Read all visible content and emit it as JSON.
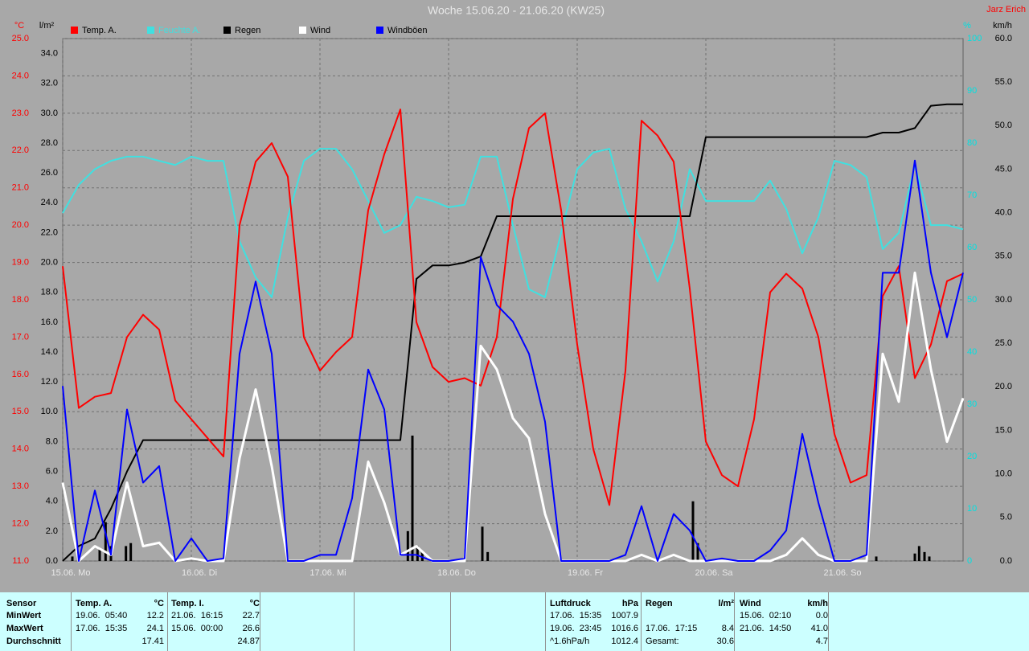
{
  "header": {
    "author": "Jarz Erich"
  },
  "chart_data": {
    "type": "line",
    "title": "Woche 15.06.20 - 21.06.20 (KW25)",
    "grid": true,
    "x": [
      0,
      3,
      6,
      9,
      12,
      15,
      18,
      21,
      24,
      27,
      30,
      33,
      36,
      39,
      42,
      45,
      48,
      51,
      54,
      57,
      60,
      63,
      66,
      69,
      72,
      75,
      78,
      81,
      84,
      87,
      90,
      93,
      96,
      99,
      102,
      105,
      108,
      111,
      114,
      117,
      120,
      123,
      126,
      129,
      132,
      135,
      138,
      141,
      144,
      147,
      150,
      153,
      156,
      159,
      162,
      165,
      168
    ],
    "xlim": [
      0,
      168
    ],
    "xticks": [
      {
        "value": 0,
        "label": "15.06. Mo"
      },
      {
        "value": 24,
        "label": "16.06. Di"
      },
      {
        "value": 48,
        "label": "17.06. Mi"
      },
      {
        "value": 72,
        "label": "18.06. Do"
      },
      {
        "value": 96,
        "label": "19.06. Fr"
      },
      {
        "value": 120,
        "label": "20.06. Sa"
      },
      {
        "value": 144,
        "label": "21.06. So"
      }
    ],
    "axes": [
      {
        "unit": "°C",
        "color": "#ff0000",
        "lim": [
          11,
          25
        ],
        "ticks": [
          {
            "value": 11,
            "label": "11.0"
          },
          {
            "value": 12,
            "label": "12.0"
          },
          {
            "value": 13,
            "label": "13.0"
          },
          {
            "value": 14,
            "label": "14.0"
          },
          {
            "value": 15,
            "label": "15.0"
          },
          {
            "value": 16,
            "label": "16.0"
          },
          {
            "value": 17,
            "label": "17.0"
          },
          {
            "value": 18,
            "label": "18.0"
          },
          {
            "value": 19,
            "label": "19.0"
          },
          {
            "value": 20,
            "label": "20.0"
          },
          {
            "value": 21,
            "label": "21.0"
          },
          {
            "value": 22,
            "label": "22.0"
          },
          {
            "value": 23,
            "label": "23.0"
          },
          {
            "value": 24,
            "label": "24.0"
          },
          {
            "value": 25,
            "label": "25.0"
          }
        ]
      },
      {
        "unit": "l/m²",
        "color": "#000000",
        "lim": [
          0,
          35
        ],
        "ticks": [
          {
            "value": 0,
            "label": "0.0"
          },
          {
            "value": 2,
            "label": "2.0"
          },
          {
            "value": 4,
            "label": "4.0"
          },
          {
            "value": 6,
            "label": "6.0"
          },
          {
            "value": 8,
            "label": "8.0"
          },
          {
            "value": 10,
            "label": "10.0"
          },
          {
            "value": 12,
            "label": "12.0"
          },
          {
            "value": 14,
            "label": "14.0"
          },
          {
            "value": 16,
            "label": "16.0"
          },
          {
            "value": 18,
            "label": "18.0"
          },
          {
            "value": 20,
            "label": "20.0"
          },
          {
            "value": 22,
            "label": "22.0"
          },
          {
            "value": 24,
            "label": "24.0"
          },
          {
            "value": 26,
            "label": "26.0"
          },
          {
            "value": 28,
            "label": "28.0"
          },
          {
            "value": 30,
            "label": "30.0"
          },
          {
            "value": 32,
            "label": "32.0"
          },
          {
            "value": 34,
            "label": "34.0"
          }
        ]
      },
      {
        "unit": "%",
        "color": "#00e0e0",
        "lim": [
          0,
          100
        ],
        "ticks": [
          0,
          10,
          20,
          30,
          40,
          50,
          60,
          70,
          80,
          90,
          100
        ]
      },
      {
        "unit": "km/h",
        "color": "#000000",
        "lim": [
          0,
          60
        ],
        "ticks": [
          {
            "value": 0,
            "label": "0.0"
          },
          {
            "value": 5,
            "label": "5.0"
          },
          {
            "value": 10,
            "label": "10.0"
          },
          {
            "value": 15,
            "label": "15.0"
          },
          {
            "value": 20,
            "label": "20.0"
          },
          {
            "value": 25,
            "label": "25.0"
          },
          {
            "value": 30,
            "label": "30.0"
          },
          {
            "value": 35,
            "label": "35.0"
          },
          {
            "value": 40,
            "label": "40.0"
          },
          {
            "value": 45,
            "label": "45.0"
          },
          {
            "value": 50,
            "label": "50.0"
          },
          {
            "value": 55,
            "label": "55.0"
          },
          {
            "value": 60,
            "label": "60.0"
          }
        ]
      }
    ],
    "series": [
      {
        "name": "Temp. A.",
        "color": "#ff0000",
        "axis": 0,
        "values": [
          18.9,
          15.1,
          15.4,
          15.5,
          17.0,
          17.6,
          17.2,
          15.3,
          14.8,
          14.3,
          13.8,
          20.0,
          21.7,
          22.2,
          21.3,
          17.0,
          16.1,
          16.6,
          17.0,
          20.4,
          21.9,
          23.1,
          17.4,
          16.2,
          15.8,
          15.9,
          15.7,
          17.0,
          20.7,
          22.6,
          23.0,
          20.4,
          16.8,
          14.0,
          12.5,
          16.1,
          22.8,
          22.4,
          21.7,
          18.3,
          14.2,
          13.3,
          13.0,
          14.8,
          18.2,
          18.7,
          18.3,
          17.0,
          14.4,
          13.1,
          13.3,
          18.1,
          18.9,
          15.9,
          16.8,
          18.5,
          18.7
        ]
      },
      {
        "name": "Feuchte A.",
        "color": "#40e0e0",
        "axis": 2,
        "values": [
          66.6,
          72,
          75,
          76.6,
          77.4,
          77.4,
          76.6,
          75.8,
          77.4,
          76.6,
          76.6,
          61.2,
          54.3,
          50.5,
          65.8,
          76.6,
          78.9,
          78.9,
          75,
          68.9,
          62.8,
          64.3,
          69.7,
          68.9,
          67.7,
          68.2,
          77.4,
          77.4,
          64.3,
          52,
          50.5,
          62.8,
          75,
          78.2,
          78.9,
          67.4,
          61.2,
          53.5,
          61.2,
          75,
          68.9,
          68.9,
          68.9,
          68.9,
          72.8,
          67.4,
          58.9,
          65.8,
          76.6,
          75.8,
          73.5,
          59.7,
          62.8,
          75.8,
          64.3,
          64.3,
          63.5
        ]
      },
      {
        "name": "Regen",
        "color": "#000000",
        "axis": 1,
        "values": [
          0,
          1.0,
          1.5,
          3.5,
          6.0,
          8.1,
          8.1,
          8.1,
          8.1,
          8.1,
          8.1,
          8.1,
          8.1,
          8.1,
          8.1,
          8.1,
          8.1,
          8.1,
          8.1,
          8.1,
          8.1,
          8.1,
          18.9,
          19.8,
          19.8,
          20.0,
          20.4,
          23.1,
          23.1,
          23.1,
          23.1,
          23.1,
          23.1,
          23.1,
          23.1,
          23.1,
          23.1,
          23.1,
          23.1,
          23.1,
          28.4,
          28.4,
          28.4,
          28.4,
          28.4,
          28.4,
          28.4,
          28.4,
          28.4,
          28.4,
          28.4,
          28.7,
          28.7,
          29.0,
          30.5,
          30.6,
          30.6
        ],
        "bars": {
          "x": [
            1.8,
            3,
            6.9,
            8,
            9,
            11.8,
            12.7,
            64.4,
            65.25,
            66.2,
            67.1,
            78.3,
            79.3,
            117.6,
            118.5,
            151.8,
            159,
            159.8,
            160.8,
            161.7
          ],
          "values": [
            0.3,
            0.3,
            0.8,
            2.6,
            1.0,
            1.0,
            1.2,
            2.0,
            8.4,
            1.0,
            0.6,
            2.3,
            0.6,
            4.0,
            1.2,
            0.3,
            0.5,
            1.0,
            0.6,
            0.3
          ]
        }
      },
      {
        "name": "Wind",
        "color": "#ffffff",
        "axis": 3,
        "values": [
          9.0,
          0,
          1.7,
          0.7,
          9.0,
          1.7,
          2.1,
          0,
          0.3,
          0,
          0,
          11.8,
          19.7,
          10.9,
          0,
          0,
          0,
          0,
          0,
          11.4,
          6.7,
          0.7,
          1.7,
          0,
          0,
          0,
          24.7,
          22.0,
          16.4,
          14.1,
          5.4,
          0,
          0,
          0,
          0,
          0,
          0.7,
          0,
          0.7,
          0,
          0,
          0,
          0,
          0,
          0,
          0.7,
          2.6,
          0.7,
          0,
          0,
          0,
          23.8,
          18.3,
          33.1,
          22.0,
          13.7,
          18.7
        ]
      },
      {
        "name": "Windböen",
        "color": "#0000ff",
        "axis": 3,
        "values": [
          20.1,
          0,
          8.1,
          0.7,
          17.4,
          9.0,
          10.9,
          0,
          2.6,
          0,
          0.3,
          23.8,
          32.1,
          23.8,
          0,
          0,
          0.7,
          0.7,
          7.2,
          22.0,
          17.4,
          0.7,
          0.7,
          0,
          0,
          0.3,
          34.9,
          29.4,
          27.5,
          23.8,
          16.0,
          0,
          0,
          0,
          0,
          0.7,
          6.3,
          0,
          5.4,
          3.5,
          0,
          0.3,
          0,
          0,
          1.2,
          3.5,
          14.6,
          6.7,
          0,
          0,
          0.7,
          33.1,
          33.1,
          46.0,
          33.1,
          25.7,
          33.1
        ]
      }
    ]
  },
  "table": {
    "corner": "Sensor",
    "row_labels": [
      "MinWert",
      "MaxWert",
      "Durchschnitt"
    ],
    "groups": [
      {
        "label": "Temp. A.",
        "unit": "°C",
        "cells": [
          {
            "time": "19.06.  05:40",
            "value": "12.2"
          },
          {
            "time": "17.06.  15:35",
            "value": "24.1"
          },
          {
            "value": "17.41"
          }
        ]
      },
      {
        "label": "Temp. I.",
        "unit": "°C",
        "cells": [
          {
            "time": "21.06.  16:15",
            "value": "22.7"
          },
          {
            "time": "15.06.  00:00",
            "value": "26.6"
          },
          {
            "value": "24.87"
          }
        ]
      },
      {
        "label": "Luftdruck",
        "unit": "hPa",
        "cells": [
          {
            "time": "17.06.  15:35",
            "value": "1007.9"
          },
          {
            "time": "19.06.  23:45",
            "value": "1016.6"
          },
          {
            "time": "^1.6hPa/h",
            "value": "1012.4"
          }
        ]
      },
      {
        "label": "Regen",
        "unit": "l/m²",
        "cells": [
          null,
          {
            "time": "17.06.  17:15",
            "value": "8.4"
          },
          {
            "time": "Gesamt:",
            "value": "30.6"
          }
        ]
      },
      {
        "label": "Wind",
        "unit": "km/h",
        "cells": [
          {
            "time": "15.06.  02:10",
            "value": "0.0"
          },
          {
            "time": "21.06.  14:50",
            "value": "41.0"
          },
          {
            "value": "4.7"
          }
        ]
      }
    ]
  }
}
